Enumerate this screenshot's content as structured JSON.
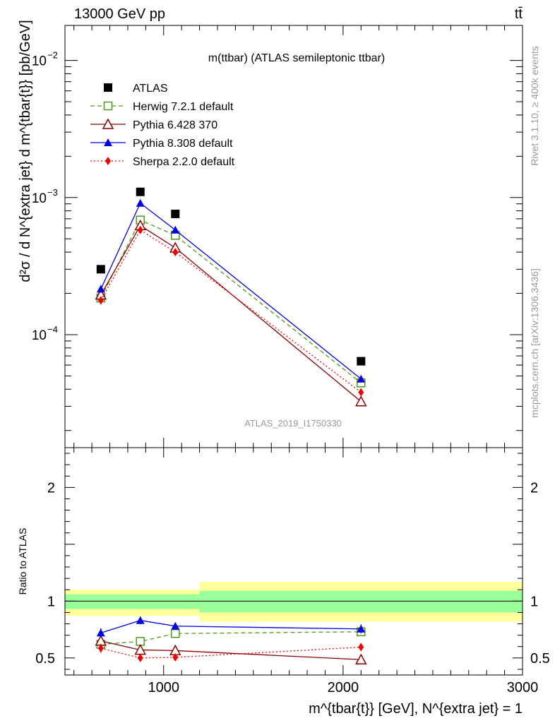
{
  "header": {
    "energy_label": "13000 GeV pp",
    "process_label": "tt̄"
  },
  "side_labels": {
    "rivet": "Rivet 3.1.10, ≥ 400k events",
    "mcplots": "mcplots.cern.ch [arXiv:1306.3436]"
  },
  "chart_data": [
    {
      "type": "line",
      "panel": "main",
      "title": "m(ttbar) (ATLAS semileptonic ttbar)",
      "watermark": "ATLAS_2019_I1750330",
      "ylabel": "d²σ / d N^{extra jet} d m^{tbar{t}} [pb/GeV]",
      "y_scale": "log",
      "xlim": [
        450,
        3000
      ],
      "ylim": [
        1.5e-05,
        0.018
      ],
      "yticks": [
        {
          "value": 0.0001,
          "label": "10",
          "exp": "−4"
        },
        {
          "value": 0.001,
          "label": "10",
          "exp": "−3"
        },
        {
          "value": 0.01,
          "label": "10",
          "exp": "−2"
        }
      ],
      "x": [
        650,
        870,
        1065,
        2100
      ],
      "series": [
        {
          "name": "ATLAS",
          "color": "#000000",
          "marker": "square-filled",
          "line": "none",
          "values": [
            0.0003,
            0.0011,
            0.00076,
            6.4e-05
          ]
        },
        {
          "name": "Herwig 7.2.1 default",
          "color": "#4c9a1a",
          "marker": "square-open",
          "line": "dashed",
          "values": [
            0.000185,
            0.000685,
            0.00053,
            4.45e-05
          ],
          "errors": [
            1.2e-05,
            3e-05,
            2e-05,
            2e-06
          ]
        },
        {
          "name": "Pythia 6.428 370",
          "color": "#8b0000",
          "marker": "triangle-open",
          "line": "solid",
          "values": [
            0.000195,
            0.000625,
            0.00043,
            3.25e-05
          ],
          "errors": [
            1.2e-05,
            3e-05,
            2e-05,
            2e-06
          ]
        },
        {
          "name": "Pythia 8.308 default",
          "color": "#0000e0",
          "marker": "triangle-filled",
          "line": "solid",
          "values": [
            0.000215,
            0.00091,
            0.00058,
            4.75e-05
          ],
          "errors": [
            1.2e-05,
            3e-05,
            2e-05,
            2e-06
          ]
        },
        {
          "name": "Sherpa 2.2.0 default",
          "color": "#ee0000",
          "marker": "diamond-filled",
          "line": "dotted",
          "values": [
            0.000178,
            0.00058,
            0.0004,
            3.8e-05
          ],
          "errors": [
            1.2e-05,
            3e-05,
            2e-05,
            2e-06
          ]
        }
      ]
    },
    {
      "type": "line",
      "panel": "ratio",
      "ylabel": "Ratio to ATLAS",
      "xlabel": "m^{tbar{t}} [GeV], N^{extra jet} = 1",
      "xlim": [
        450,
        3000
      ],
      "ylim": [
        0.35,
        2.35
      ],
      "xticks": [
        1000,
        2000,
        3000
      ],
      "yticks": [
        0.5,
        1,
        2
      ],
      "bands": [
        {
          "x0": 450,
          "x1": 870,
          "inner": [
            0.93,
            1.06
          ],
          "outer": [
            0.87,
            1.1
          ]
        },
        {
          "x0": 870,
          "x1": 1200,
          "inner": [
            0.93,
            1.06
          ],
          "outer": [
            0.87,
            1.1
          ]
        },
        {
          "x0": 1200,
          "x1": 3000,
          "inner": [
            0.9,
            1.09
          ],
          "outer": [
            0.82,
            1.17
          ]
        }
      ],
      "band_colors": {
        "inner": "#99ff99",
        "outer": "#ffff99"
      },
      "x": [
        650,
        870,
        1065,
        2100
      ],
      "series": [
        {
          "name": "Herwig 7.2.1 default",
          "color": "#4c9a1a",
          "marker": "square-open",
          "line": "dashed",
          "values": [
            0.62,
            0.645,
            0.715,
            0.73
          ],
          "errors": [
            0.03,
            0.025,
            0.02,
            0.03
          ]
        },
        {
          "name": "Pythia 6.428 370",
          "color": "#8b0000",
          "marker": "triangle-open",
          "line": "solid",
          "values": [
            0.65,
            0.57,
            0.565,
            0.485
          ],
          "errors": [
            0.03,
            0.025,
            0.02,
            0.03
          ]
        },
        {
          "name": "Pythia 8.308 default",
          "color": "#0000e0",
          "marker": "triangle-filled",
          "line": "solid",
          "values": [
            0.72,
            0.83,
            0.78,
            0.755
          ],
          "errors": [
            0.04,
            0.035,
            0.03,
            0.04
          ]
        },
        {
          "name": "Sherpa 2.2.0 default",
          "color": "#ee0000",
          "marker": "diamond-filled",
          "line": "dotted",
          "values": [
            0.585,
            0.5,
            0.505,
            0.595
          ],
          "errors": [
            0.04,
            0.03,
            0.03,
            0.035
          ]
        }
      ]
    }
  ]
}
